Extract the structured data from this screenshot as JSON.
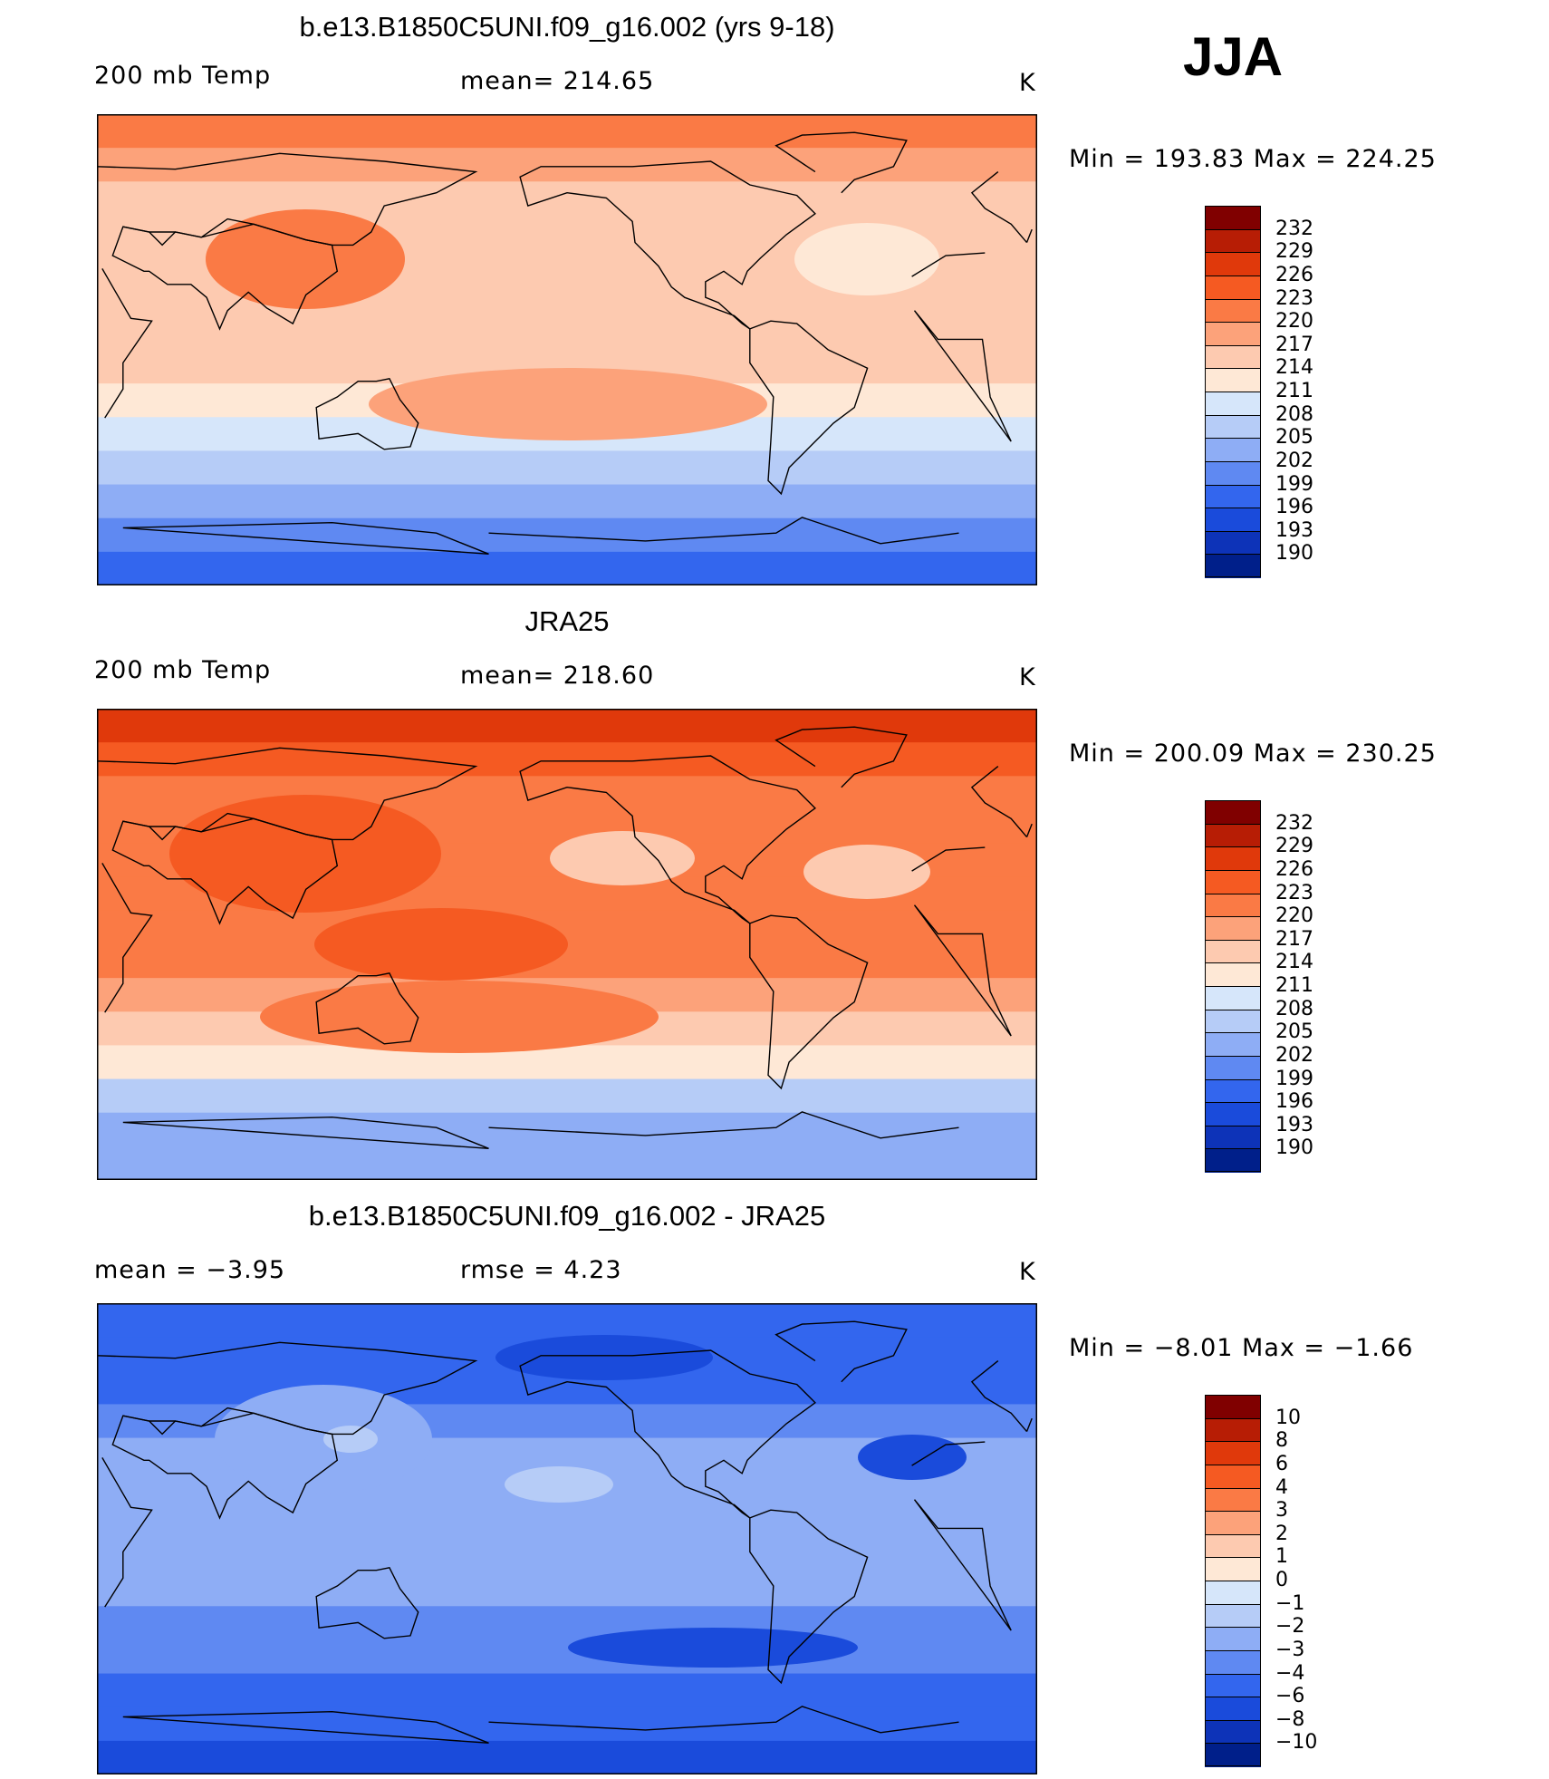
{
  "season": "JJA",
  "panels": [
    {
      "title": "b.e13.B1850C5UNI.f09_g16.002 (yrs 9-18)",
      "left_label": "200 mb Temp",
      "center_label": "mean= 214.65",
      "units": "K",
      "minmax": "Min = 193.83 Max = 224.25",
      "colorbar": [
        "232",
        "229",
        "226",
        "223",
        "220",
        "217",
        "214",
        "211",
        "208",
        "205",
        "202",
        "199",
        "196",
        "193",
        "190"
      ]
    },
    {
      "title": "JRA25",
      "left_label": "200 mb Temp",
      "center_label": "mean= 218.60",
      "units": "K",
      "minmax": "Min = 200.09 Max = 230.25",
      "colorbar": [
        "232",
        "229",
        "226",
        "223",
        "220",
        "217",
        "214",
        "211",
        "208",
        "205",
        "202",
        "199",
        "196",
        "193",
        "190"
      ]
    },
    {
      "title": "b.e13.B1850C5UNI.f09_g16.002 - JRA25",
      "left_label": "mean = −3.95",
      "center_label": "rmse = 4.23",
      "units": "K",
      "minmax": "Min = −8.01 Max = −1.66",
      "colorbar": [
        "10",
        "8",
        "6",
        "4",
        "3",
        "2",
        "1",
        "0",
        "−1",
        "−2",
        "−3",
        "−4",
        "−6",
        "−8",
        "−10"
      ]
    }
  ],
  "palette": [
    "#800000",
    "#b71d05",
    "#e0390b",
    "#f55a22",
    "#fa7a45",
    "#fca27a",
    "#fdcab0",
    "#fee8d6",
    "#d6e6fa",
    "#b6ccf7",
    "#8eadf5",
    "#5f89f2",
    "#3366ee",
    "#1a4bdb",
    "#0d33b8",
    "#001f8a"
  ],
  "map_panel_1": {
    "band_temperatures_by_latitude": [
      221,
      218,
      216,
      215,
      215,
      216,
      216,
      215,
      213,
      210,
      207,
      203,
      199,
      196
    ],
    "warm_features": [
      "Tibetan Plateau high ~223",
      "North Atlantic cool ~212",
      "North Pacific cool ~211"
    ]
  },
  "map_panel_2": {
    "band_temperatures_by_latitude": [
      228,
      225,
      222,
      220,
      220,
      221,
      220,
      220,
      219,
      215,
      211,
      207,
      203,
      202
    ],
    "warm_features": [
      "Tibetan Plateau high ~227",
      "Southern subtropical band ~222"
    ]
  },
  "map_panel_3": {
    "band_temperatures_by_latitude": [
      -6,
      -5.5,
      -5,
      -3.5,
      -3,
      -2.5,
      -3,
      -3,
      -3,
      -3.5,
      -4,
      -5,
      -6,
      -6.5
    ],
    "features": [
      "Asia −1.8",
      "Central Pacific −2",
      "North Pacific −7",
      "Southern Ocean −7"
    ]
  }
}
